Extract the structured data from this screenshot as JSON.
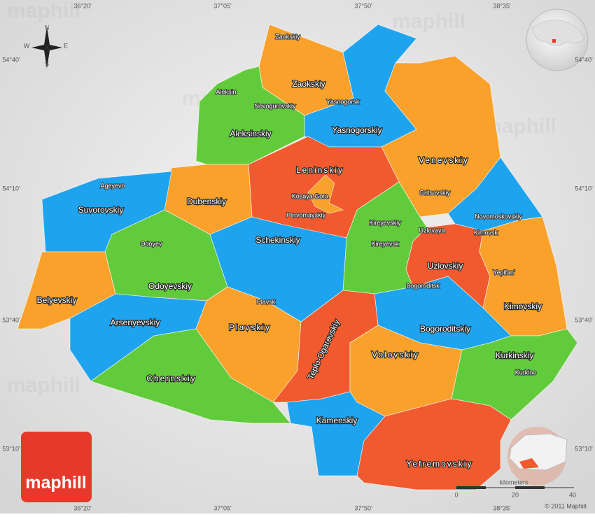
{
  "map": {
    "coordinates": {
      "top": [
        "36°20'",
        "37°05'",
        "37°50'",
        "38°35'"
      ],
      "bottom": [
        "36°20'",
        "37°05'",
        "37°50'",
        "38°35'"
      ],
      "left": [
        "54°40'",
        "54°10'",
        "53°40'",
        "53°10'"
      ],
      "right": [
        "54°40'",
        "54°10'",
        "53°40'",
        "53°10'"
      ]
    },
    "compass": {
      "n": "N",
      "s": "S",
      "w": "W",
      "e": "E"
    },
    "regions": [
      "Zaokskiy",
      "Yasnogorskiy",
      "Aleksinskiy",
      "Venevskiy",
      "Leninskiy",
      "Suvorovskiy",
      "Dubenskiy",
      "Schekinskiy",
      "Odoyevskiy",
      "Uzlovskiy",
      "Belyevskiy",
      "Kimovskiy",
      "Arsenyevskiy",
      "Plavskiy",
      "Bogoroditskiy",
      "Teplo-Ogarevskiy",
      "Volovskiy",
      "Kurkinskiy",
      "Chernskiy",
      "Kamenskiy",
      "Yefremovskiy"
    ],
    "towns": [
      "Zaokskiy",
      "Aleksin",
      "Novogurovskiy",
      "Yasnogorsk",
      "Ageyevo",
      "Kosaya Gora",
      "Pervomayskiy",
      "Gritsovskiy",
      "Novomoskovskiy",
      "Kimovsk",
      "Kireyevskiy",
      "Kireyevsk",
      "Uzlovaya",
      "Odoyev",
      "Yepifan'",
      "Bogoroditsk",
      "Plavsk",
      "Kurkino"
    ],
    "scale": {
      "unit": "kilometers",
      "ticks": [
        0,
        20,
        40
      ]
    },
    "credit": "© 2011 Maphill",
    "logo": "maphill",
    "watermark": "maphill"
  }
}
